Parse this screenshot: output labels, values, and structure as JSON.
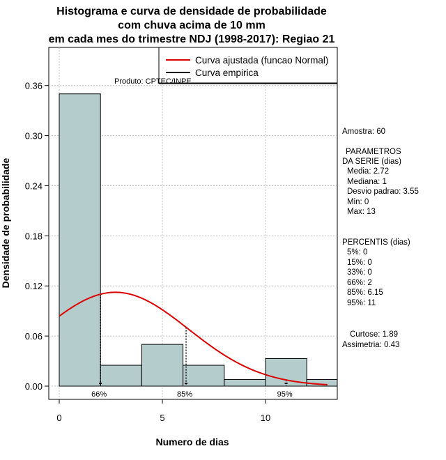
{
  "chart_data": {
    "type": "bar",
    "title_lines": [
      "Histograma e curva de densidade de probabilidade",
      "com chuva acima de 10 mm",
      "em cada mes do trimestre NDJ (1998-2017): Regiao 21"
    ],
    "xlabel": "Numero de dias",
    "ylabel": "Densidade de probabilidade",
    "xlim": [
      -0.5,
      13.5
    ],
    "ylim": [
      0,
      0.38
    ],
    "grid": true,
    "x_ticks": [
      0,
      5,
      10
    ],
    "x_tick_labels": [
      "0",
      "5",
      "10"
    ],
    "y_ticks": [
      0.0,
      0.06,
      0.12,
      0.18,
      0.24,
      0.3,
      0.36
    ],
    "y_tick_labels": [
      "0.00",
      "0.06",
      "0.12",
      "0.18",
      "0.24",
      "0.30",
      "0.36"
    ],
    "bins": [
      {
        "start": 0,
        "end": 2,
        "density": 0.35
      },
      {
        "start": 2,
        "end": 4,
        "density": 0.025
      },
      {
        "start": 4,
        "end": 6,
        "density": 0.05
      },
      {
        "start": 6,
        "end": 8,
        "density": 0.025
      },
      {
        "start": 8,
        "end": 10,
        "density": 0.008
      },
      {
        "start": 10,
        "end": 12,
        "density": 0.033
      },
      {
        "start": 12,
        "end": 14,
        "density": 0.008
      }
    ],
    "bar_color": "#b4cccc",
    "fitted_curve": {
      "distribution": "normal",
      "mean": 2.72,
      "sd": 3.55,
      "x_start": 0,
      "x_end": 13,
      "color": "#dd0000"
    },
    "percentile_markers": [
      {
        "label": "66%",
        "x": 2
      },
      {
        "label": "85%",
        "x": 6.15
      },
      {
        "label": "95%",
        "x": 11
      }
    ],
    "legend": {
      "position": "top-right",
      "entries": [
        {
          "label": "Curva ajustada (funcao Normal)",
          "color": "#dd0000"
        },
        {
          "label": "Curva empirica",
          "color": "#000000"
        }
      ]
    },
    "credit": "Produto: CPTEC/INPE"
  },
  "stats_panel": {
    "sample": "Amostra: 60",
    "params_title_1": "PARAMETROS",
    "params_title_2": "DA SERIE (dias)",
    "mean": "Media: 2.72",
    "median": "Mediana: 1",
    "sd": "Desvio padrao: 3.55",
    "min": "Min: 0",
    "max": "Max: 13",
    "percentiles_title": "PERCENTIS (dias)",
    "p5": "5%: 0",
    "p15": "15%: 0",
    "p33": "33%: 0",
    "p66": "66%: 2",
    "p85": "85%: 6.15",
    "p95": "95%: 11",
    "kurtosis": "Curtose: 1.89",
    "skewness": "Assimetria: 0.43"
  }
}
